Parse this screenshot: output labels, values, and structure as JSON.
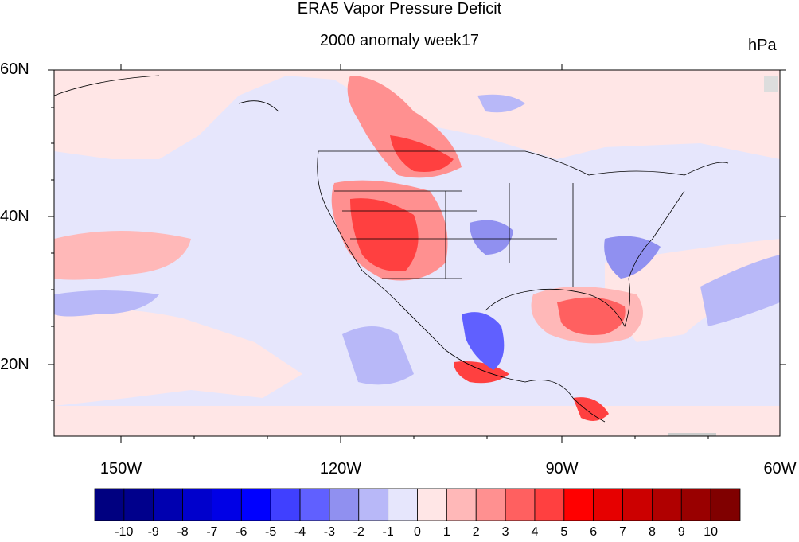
{
  "title": "ERA5 Vapor Pressure Deficit",
  "subtitle": "2000 anomaly week17",
  "units": "hPa",
  "lat_labels": [
    "60N",
    "40N",
    "20N"
  ],
  "lon_labels": [
    "150W",
    "120W",
    "90W",
    "60W"
  ],
  "colorbar": {
    "labels": [
      "-10",
      "-9",
      "-8",
      "-7",
      "-6",
      "-5",
      "-4",
      "-3",
      "-2",
      "-1",
      "0",
      "1",
      "2",
      "3",
      "4",
      "5",
      "6",
      "7",
      "8",
      "9",
      "10"
    ],
    "colors": [
      "#000080",
      "#00008c",
      "#0000b0",
      "#0000cc",
      "#0000e6",
      "#0000ff",
      "#4040ff",
      "#6060ff",
      "#9090f0",
      "#b8b8f8",
      "#e6e6fc",
      "#ffe6e6",
      "#ffb8b8",
      "#ff9090",
      "#ff6060",
      "#ff4040",
      "#ff0000",
      "#e60000",
      "#cc0000",
      "#b00000",
      "#990000",
      "#800000"
    ]
  },
  "palette": {
    "light_blue": "#e6e6fc",
    "light_red": "#ffe6e6",
    "red": "#ff6060",
    "blue": "#6060ff"
  }
}
